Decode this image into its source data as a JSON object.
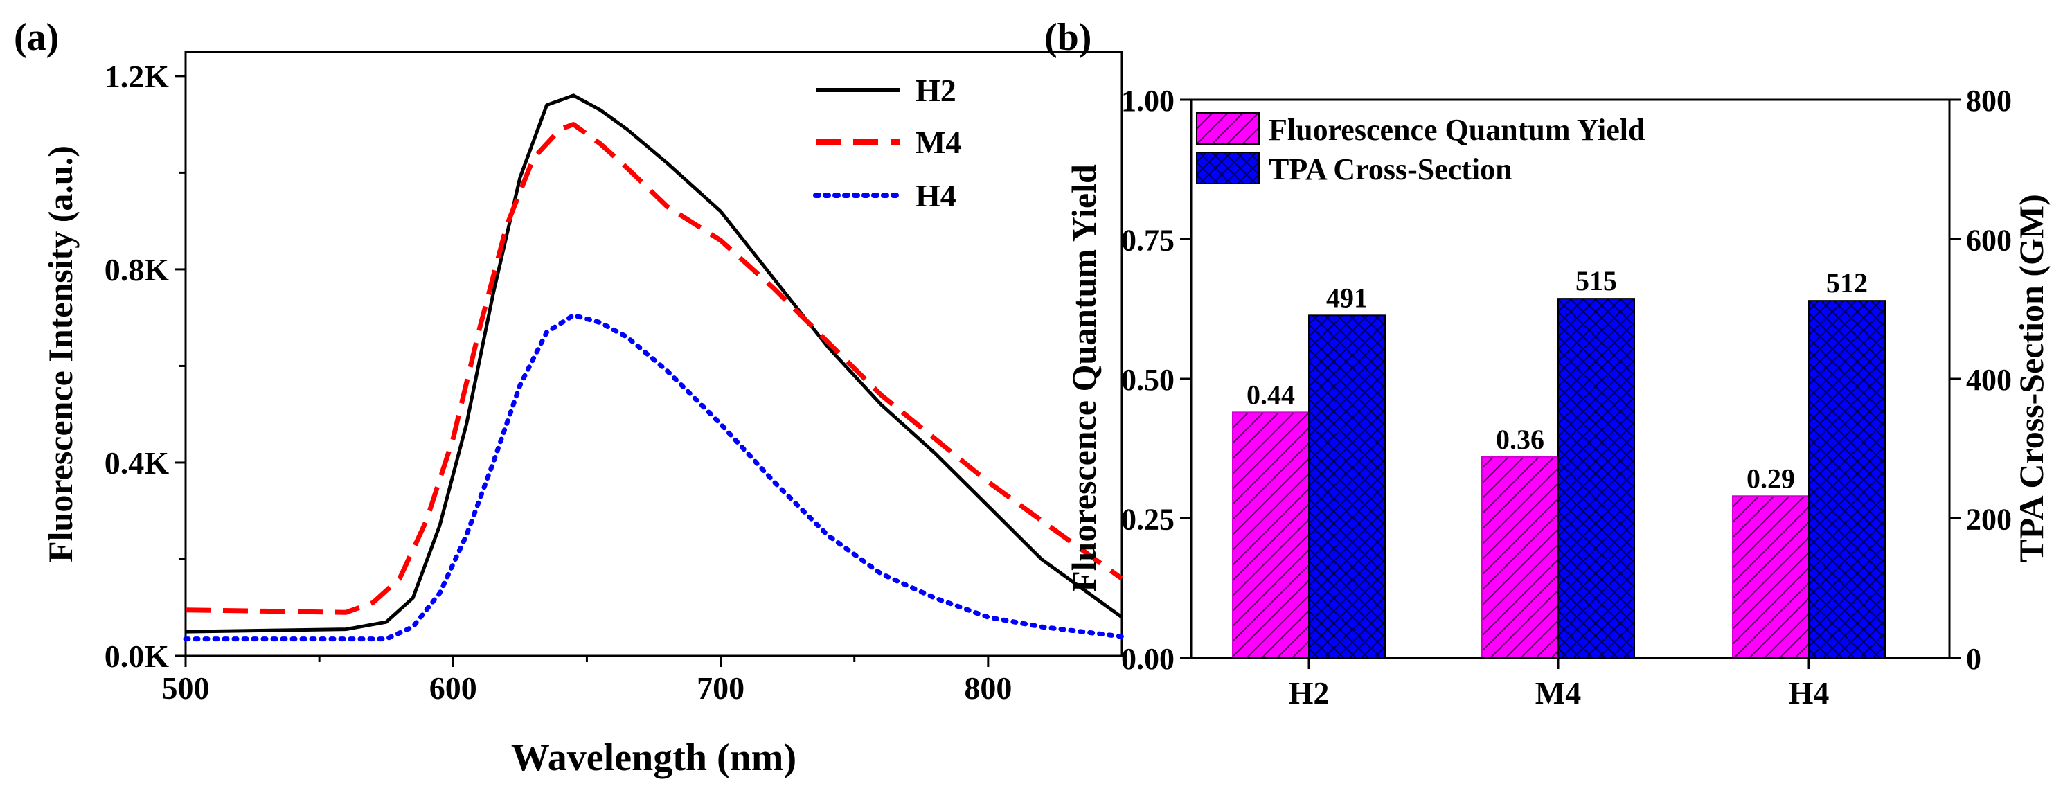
{
  "panels": {
    "a_label": "(a)",
    "b_label": "(b)"
  },
  "colors": {
    "H2_line": "#000000",
    "M4_line": "#ff0000",
    "H4_line": "#0000ff",
    "qy_bar": "#ff00ff",
    "tpa_bar": "#0000ff"
  },
  "chart_data": [
    {
      "type": "line",
      "title": "",
      "xlabel": "Wavelength (nm)",
      "ylabel": "Fluorescence Intensity (a.u.)",
      "xlim": [
        500,
        850
      ],
      "ylim": [
        0,
        1250
      ],
      "xticks": [
        500,
        600,
        700,
        800
      ],
      "xtick_labels": [
        "500",
        "600",
        "700",
        "800"
      ],
      "yticks": [
        0,
        400,
        800,
        1200
      ],
      "ytick_labels": [
        "0.0K",
        "0.4K",
        "0.8K",
        "1.2K"
      ],
      "legend": "top-right",
      "series": [
        {
          "name": "H2",
          "style": "solid",
          "x": [
            500,
            560,
            575,
            585,
            595,
            605,
            615,
            625,
            635,
            645,
            655,
            665,
            680,
            700,
            720,
            740,
            760,
            780,
            800,
            820,
            850
          ],
          "y": [
            50,
            55,
            70,
            120,
            270,
            480,
            750,
            990,
            1140,
            1160,
            1130,
            1090,
            1020,
            920,
            780,
            640,
            520,
            420,
            310,
            200,
            80
          ]
        },
        {
          "name": "M4",
          "style": "dashed",
          "x": [
            500,
            560,
            570,
            580,
            590,
            600,
            610,
            620,
            630,
            640,
            645,
            655,
            665,
            680,
            700,
            720,
            740,
            760,
            780,
            800,
            820,
            850
          ],
          "y": [
            95,
            90,
            110,
            160,
            280,
            450,
            680,
            890,
            1030,
            1090,
            1100,
            1060,
            1010,
            930,
            860,
            760,
            650,
            540,
            450,
            360,
            280,
            160
          ]
        },
        {
          "name": "H4",
          "style": "dotted",
          "x": [
            500,
            575,
            585,
            595,
            605,
            615,
            625,
            635,
            645,
            655,
            665,
            680,
            700,
            720,
            740,
            760,
            780,
            800,
            820,
            850
          ],
          "y": [
            35,
            35,
            60,
            130,
            250,
            400,
            560,
            670,
            705,
            690,
            660,
            590,
            480,
            360,
            250,
            170,
            120,
            80,
            60,
            40
          ]
        }
      ]
    },
    {
      "type": "bar",
      "title": "",
      "xlabel": "",
      "ylabel": "Fluorescence Quantum Yield",
      "y2label": "TPA Cross-Section (GM)",
      "categories": [
        "H2",
        "M4",
        "H4"
      ],
      "ylim": [
        0,
        1
      ],
      "y2lim": [
        0,
        800
      ],
      "yticks": [
        0,
        0.25,
        0.5,
        0.75,
        1
      ],
      "ytick_labels": [
        "0.00",
        "0.25",
        "0.50",
        "0.75",
        "1.00"
      ],
      "y2ticks": [
        0,
        200,
        400,
        600,
        800
      ],
      "y2tick_labels": [
        "0",
        "200",
        "400",
        "600",
        "800"
      ],
      "legend": "top-left",
      "series": [
        {
          "name": "Fluorescence Quantum Yield",
          "axis": "left",
          "values": [
            0.44,
            0.36,
            0.29
          ],
          "labels": [
            "0.44",
            "0.36",
            "0.29"
          ]
        },
        {
          "name": "TPA Cross-Section",
          "axis": "right",
          "values": [
            491,
            515,
            512
          ],
          "labels": [
            "491",
            "515",
            "512"
          ]
        }
      ]
    }
  ]
}
